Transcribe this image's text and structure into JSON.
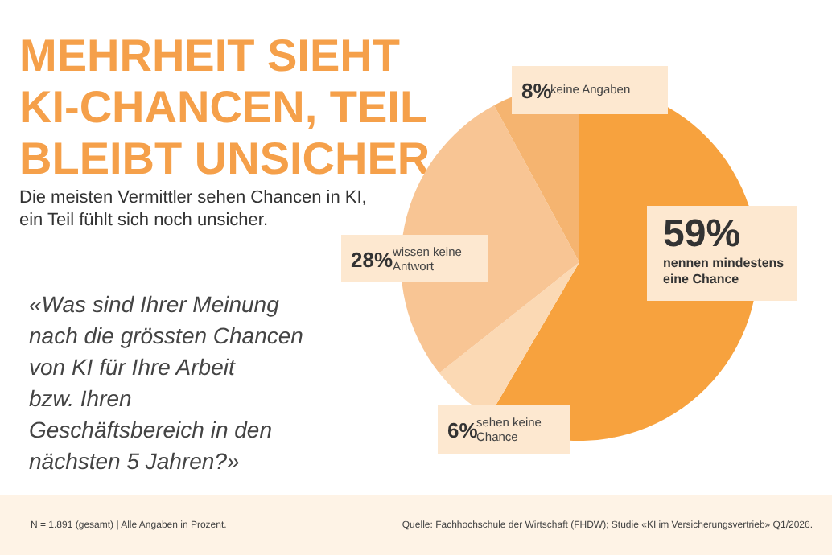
{
  "chart_data": {
    "type": "pie",
    "title": "MEHRHEIT SIEHT KI-CHANCEN, TEIL BLEIBT UNSICHER",
    "subtitle": "Die meisten Vermittler sehen Chancen in KI, ein Teil fühlt sich noch unsicher.",
    "categories": [
      "nennen mindestens eine Chance",
      "sehen keine Chance",
      "wissen keine Antwort",
      "keine Angaben"
    ],
    "values": [
      59,
      6,
      28,
      8
    ],
    "colors": [
      "#f7a23e",
      "#fbd9b4",
      "#f8c594",
      "#f5b470"
    ],
    "value_labels": [
      "59%",
      "6%",
      "28%",
      "8%"
    ],
    "annotations": [
      "«Was sind Ihrer Meinung nach die grössten Chancen von KI für Ihre Arbeit bzw. Ihren Geschäftsbereich in den nächsten 5 Jahren?»",
      "N = 1.891 (gesamt) | Alle Angaben in Prozent.",
      "Quelle: Fachhochschule der Wirtschaft (FHDW); Studie «KI im Versicherungsvertrieb» Q1/2026."
    ]
  }
}
